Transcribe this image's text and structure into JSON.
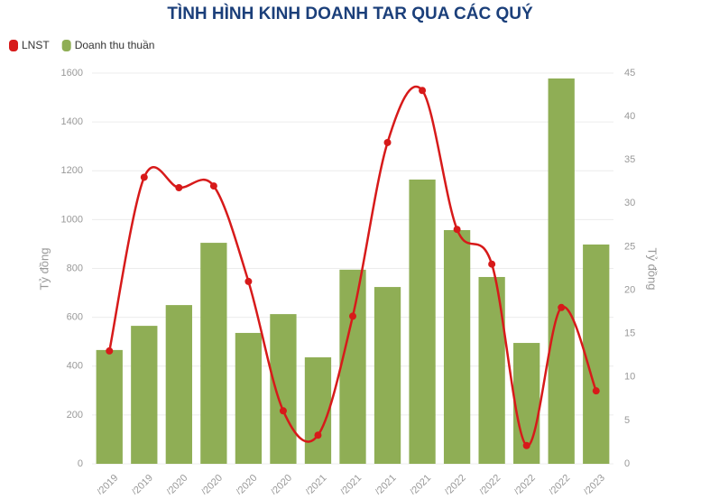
{
  "chart_data": {
    "type": "bar-line",
    "title": "TÌNH HÌNH KINH DOANH TAR QUA CÁC QUÝ",
    "categories": [
      "/2019",
      "/2019",
      "/2020",
      "/2020",
      "/2020",
      "/2020",
      "/2021",
      "/2021",
      "/2021",
      "/2021",
      "/2022",
      "/2022",
      "/2022",
      "/2022",
      "/2023"
    ],
    "series": [
      {
        "name": "LNST",
        "color": "#d71a1a",
        "type": "line",
        "axis": "y2",
        "values": [
          13,
          33,
          31.8,
          32,
          21,
          6.1,
          3.3,
          17,
          37,
          43,
          27,
          23,
          2.1,
          18,
          8.4
        ]
      },
      {
        "name": "Doanh thu thuần",
        "color": "#8fae55",
        "type": "bar",
        "values": [
          466,
          565,
          650,
          905,
          536,
          613,
          436,
          795,
          724,
          1164,
          957,
          765,
          495,
          1578,
          898
        ]
      }
    ],
    "ylabel": "Tỷ đồng",
    "y2label": "Tỷ đồng",
    "ylim": [
      0,
      1600
    ],
    "yticks": [
      0,
      200,
      400,
      600,
      800,
      1000,
      1200,
      1400,
      1600
    ],
    "y2lim": [
      0,
      45
    ],
    "y2ticks": [
      0,
      5,
      10,
      15,
      20,
      25,
      30,
      35,
      40,
      45
    ],
    "grid": true,
    "legend": "top-left"
  }
}
